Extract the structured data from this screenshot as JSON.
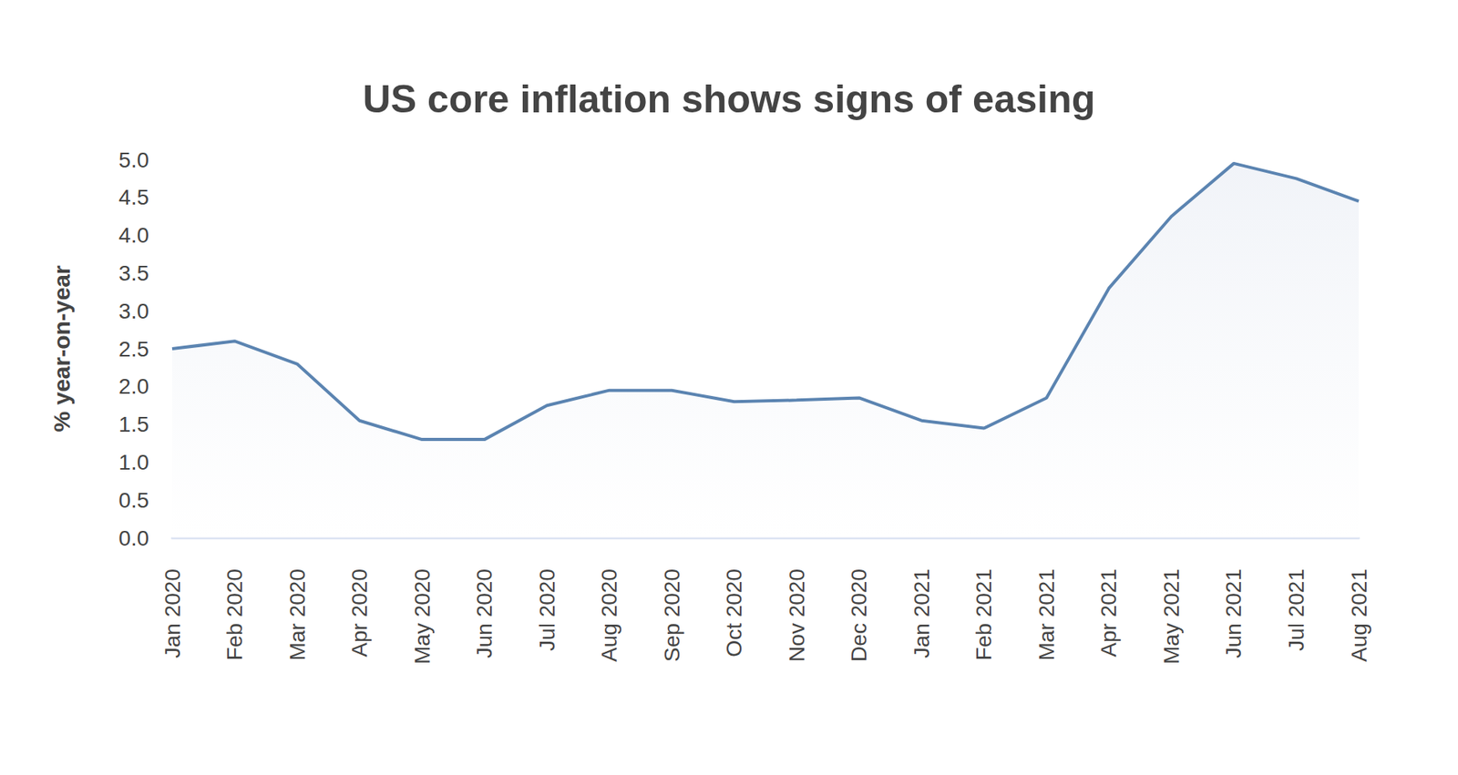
{
  "chart_data": {
    "type": "area",
    "title": "US core inflation shows signs of easing",
    "y_label": "% year-on-year",
    "categories": [
      "Jan 2020",
      "Feb 2020",
      "Mar 2020",
      "Apr 2020",
      "May 2020",
      "Jun 2020",
      "Jul 2020",
      "Aug 2020",
      "Sep 2020",
      "Oct 2020",
      "Nov 2020",
      "Dec 2020",
      "Jan 2021",
      "Feb 2021",
      "Mar 2021",
      "Apr 2021",
      "May 2021",
      "Jun 2021",
      "Jul 2021",
      "Aug 2021"
    ],
    "values": [
      2.5,
      2.6,
      2.3,
      1.55,
      1.3,
      1.3,
      1.75,
      1.95,
      1.95,
      1.8,
      1.82,
      1.85,
      1.55,
      1.45,
      1.85,
      3.3,
      4.25,
      4.95,
      4.75,
      4.45
    ],
    "color": "#5b84b1",
    "ylim": [
      0,
      5
    ],
    "yticks": [
      {
        "value": 0,
        "label": "0.0"
      },
      0.5,
      {
        "value": 1,
        "label": "1.0"
      },
      1.5,
      {
        "value": 2,
        "label": "2.0"
      },
      2.5,
      {
        "value": 3,
        "label": "3.0"
      },
      3.5,
      {
        "value": 4,
        "label": "4.0"
      },
      4.5,
      {
        "value": 5,
        "label": "5.0"
      }
    ],
    "grid": false
  }
}
